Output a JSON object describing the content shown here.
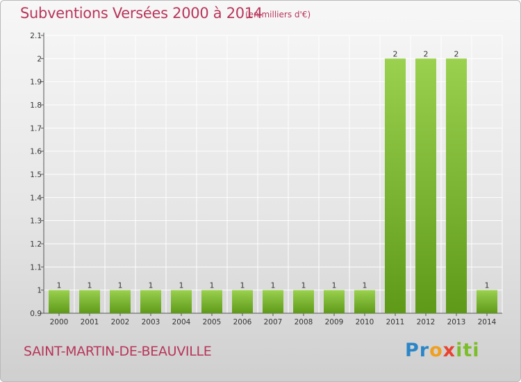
{
  "title": "Subventions Versées 2000 à 2014",
  "subtitle": "(en milliers d'€)",
  "commune": "SAINT-MARTIN-DE-BEAUVILLE",
  "logo_text": "Proxiti",
  "colors": {
    "title": "#b8355a",
    "bar_light": "#9ad14f",
    "bar_dark": "#5e9a18",
    "grid": "#ffffff"
  },
  "chart_data": {
    "type": "bar",
    "title": "Subventions Versées 2000 à 2014",
    "subtitle": "(en milliers d'€)",
    "categories": [
      "2000",
      "2001",
      "2002",
      "2003",
      "2004",
      "2005",
      "2006",
      "2007",
      "2008",
      "2009",
      "2010",
      "2011",
      "2012",
      "2013",
      "2014"
    ],
    "values": [
      1,
      1,
      1,
      1,
      1,
      1,
      1,
      1,
      1,
      1,
      1,
      2,
      2,
      2,
      1
    ],
    "data_labels": [
      "1",
      "1",
      "1",
      "1",
      "1",
      "1",
      "1",
      "1",
      "1",
      "1",
      "1",
      "2",
      "2",
      "2",
      "1"
    ],
    "ylim": [
      0.9,
      2.1
    ],
    "yticks": [
      0.9,
      1,
      1.1,
      1.2,
      1.3,
      1.4,
      1.5,
      1.6,
      1.7,
      1.8,
      1.9,
      2,
      2.1
    ],
    "ytick_labels": [
      "0.9",
      "1",
      "1.1",
      "1.2",
      "1.3",
      "1.4",
      "1.5",
      "1.6",
      "1.7",
      "1.8",
      "1.9",
      "2",
      "2.1"
    ],
    "xlabel": "",
    "ylabel": "",
    "grid": true
  }
}
